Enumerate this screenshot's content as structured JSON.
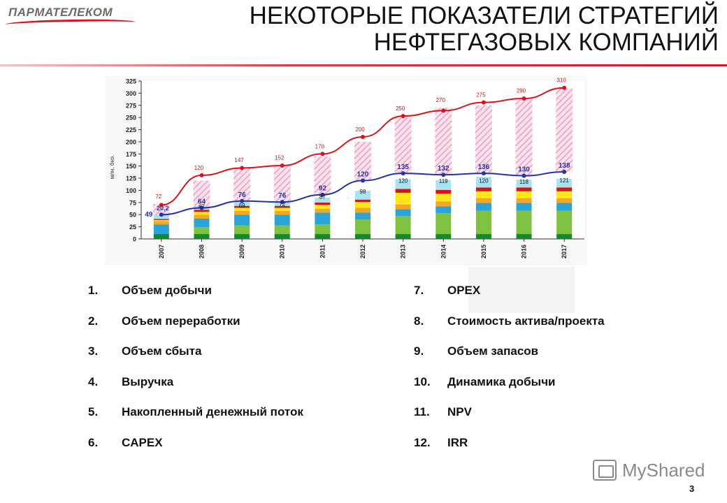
{
  "header": {
    "logo_text": "ПАРМАТЕЛЕКОМ",
    "title_line1": "НЕКОТОРЫЕ ПОКАЗАТЕЛИ СТРАТЕГИЙ",
    "title_line2": "НЕФТЕГАЗОВЫХ КОМПАНИЙ"
  },
  "chart_data": {
    "type": "bar",
    "ylabel": "млн. бнэ.",
    "ylim": [
      0,
      325
    ],
    "y_ticks": [
      0,
      25,
      50,
      75,
      100,
      125,
      150,
      175,
      200,
      225,
      250,
      275,
      300,
      325
    ],
    "categories": [
      "2007",
      "2008",
      "2009",
      "2010",
      "2011",
      "2012",
      "2013",
      "2014",
      "2015",
      "2016",
      "2017"
    ],
    "total_labels": [
      72,
      120,
      147,
      152,
      170,
      200,
      250,
      270,
      275,
      290,
      310
    ],
    "mid_labels": [
      null,
      67,
      69,
      72,
      87,
      98,
      120,
      119,
      120,
      118,
      121
    ],
    "blue_line_labels": [
      "49",
      "64",
      "76",
      "76",
      "92",
      "120",
      "135",
      "132",
      "136",
      "130",
      "138"
    ],
    "blue_line_extra_label": "20,2",
    "colors": {
      "red_line": "#d7141a",
      "blue_line": "#2233aa",
      "hatch": "#f2b8d4",
      "dark_green": "#118a2c",
      "green": "#7fc241",
      "cyan": "#2aa3d8",
      "orange": "#f5a623",
      "yellow": "#ffe61a",
      "red_seg": "#d7141a",
      "light_cyan": "#a8e2f5"
    },
    "segments": [
      {
        "name": "dark_green",
        "values": [
          10,
          10,
          10,
          10,
          10,
          10,
          10,
          10,
          10,
          10,
          10
        ]
      },
      {
        "name": "green",
        "values": [
          0,
          14,
          18,
          18,
          20,
          30,
          37,
          43,
          48,
          48,
          48
        ]
      },
      {
        "name": "cyan",
        "values": [
          20,
          18,
          22,
          22,
          24,
          14,
          14,
          14,
          16,
          16,
          16
        ]
      },
      {
        "name": "orange",
        "values": [
          6,
          8,
          8,
          8,
          8,
          10,
          10,
          10,
          10,
          10,
          10
        ]
      },
      {
        "name": "yellow",
        "values": [
          3,
          6,
          6,
          6,
          8,
          12,
          24,
          16,
          14,
          14,
          14
        ]
      },
      {
        "name": "red_seg",
        "values": [
          2,
          4,
          4,
          4,
          5,
          5,
          8,
          8,
          8,
          8,
          8
        ]
      },
      {
        "name": "light_cyan",
        "values": [
          8,
          8,
          8,
          8,
          10,
          18,
          20,
          20,
          22,
          16,
          18
        ]
      }
    ],
    "hatch_ranges": [
      [
        49,
        72
      ],
      [
        64,
        120
      ],
      [
        76,
        147
      ],
      [
        76,
        152
      ],
      [
        92,
        170
      ],
      [
        120,
        200
      ],
      [
        135,
        250
      ],
      [
        132,
        270
      ],
      [
        136,
        275
      ],
      [
        130,
        290
      ],
      [
        138,
        310
      ]
    ],
    "red_line": [
      70,
      131,
      146,
      151,
      175,
      210,
      253,
      264,
      281,
      289,
      311
    ],
    "blue_line": [
      50,
      64,
      78,
      76,
      91,
      120,
      135,
      132,
      135,
      130,
      138
    ]
  },
  "list_left": [
    {
      "num": "1.",
      "label": "Объем добычи"
    },
    {
      "num": "2.",
      "label": "Объем переработки"
    },
    {
      "num": "3.",
      "label": "Объем сбыта"
    },
    {
      "num": "4.",
      "label": "Выручка"
    },
    {
      "num": "5.",
      "label": "Накопленный денежный поток"
    },
    {
      "num": "6.",
      "label": "CAPEX"
    }
  ],
  "list_right": [
    {
      "num": "7.",
      "label": "OPEX"
    },
    {
      "num": "8.",
      "label": "Стоимость актива/проекта"
    },
    {
      "num": "9.",
      "label": "Объем запасов"
    },
    {
      "num": "10.",
      "label": "Динамика добычи"
    },
    {
      "num": "11.",
      "label": "NPV"
    },
    {
      "num": "12.",
      "label": "IRR"
    }
  ],
  "footer": {
    "watermark": "MyShared",
    "page_number": "3"
  }
}
